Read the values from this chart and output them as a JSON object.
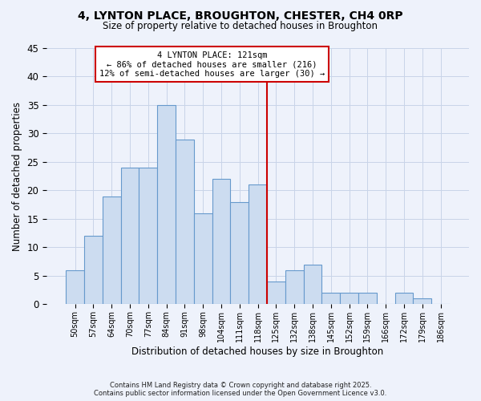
{
  "title": "4, LYNTON PLACE, BROUGHTON, CHESTER, CH4 0RP",
  "subtitle": "Size of property relative to detached houses in Broughton",
  "xlabel": "Distribution of detached houses by size in Broughton",
  "ylabel": "Number of detached properties",
  "bar_labels": [
    "50sqm",
    "57sqm",
    "64sqm",
    "70sqm",
    "77sqm",
    "84sqm",
    "91sqm",
    "98sqm",
    "104sqm",
    "111sqm",
    "118sqm",
    "125sqm",
    "132sqm",
    "138sqm",
    "145sqm",
    "152sqm",
    "159sqm",
    "166sqm",
    "172sqm",
    "179sqm",
    "186sqm"
  ],
  "bar_values": [
    6,
    12,
    19,
    24,
    24,
    35,
    29,
    16,
    22,
    18,
    21,
    4,
    6,
    7,
    2,
    2,
    2,
    0,
    2,
    1,
    0
  ],
  "bar_color": "#ccdcf0",
  "bar_edge_color": "#6699cc",
  "vline_x": 11,
  "vline_color": "#cc0000",
  "ylim": [
    0,
    45
  ],
  "yticks": [
    0,
    5,
    10,
    15,
    20,
    25,
    30,
    35,
    40,
    45
  ],
  "annotation_title": "4 LYNTON PLACE: 121sqm",
  "annotation_line1": "← 86% of detached houses are smaller (216)",
  "annotation_line2": "12% of semi-detached houses are larger (30) →",
  "annotation_box_color": "#ffffff",
  "annotation_box_edge": "#cc0000",
  "footer1": "Contains HM Land Registry data © Crown copyright and database right 2025.",
  "footer2": "Contains public sector information licensed under the Open Government Licence v3.0.",
  "bg_color": "#eef2fb",
  "grid_color": "#c8d4e8"
}
